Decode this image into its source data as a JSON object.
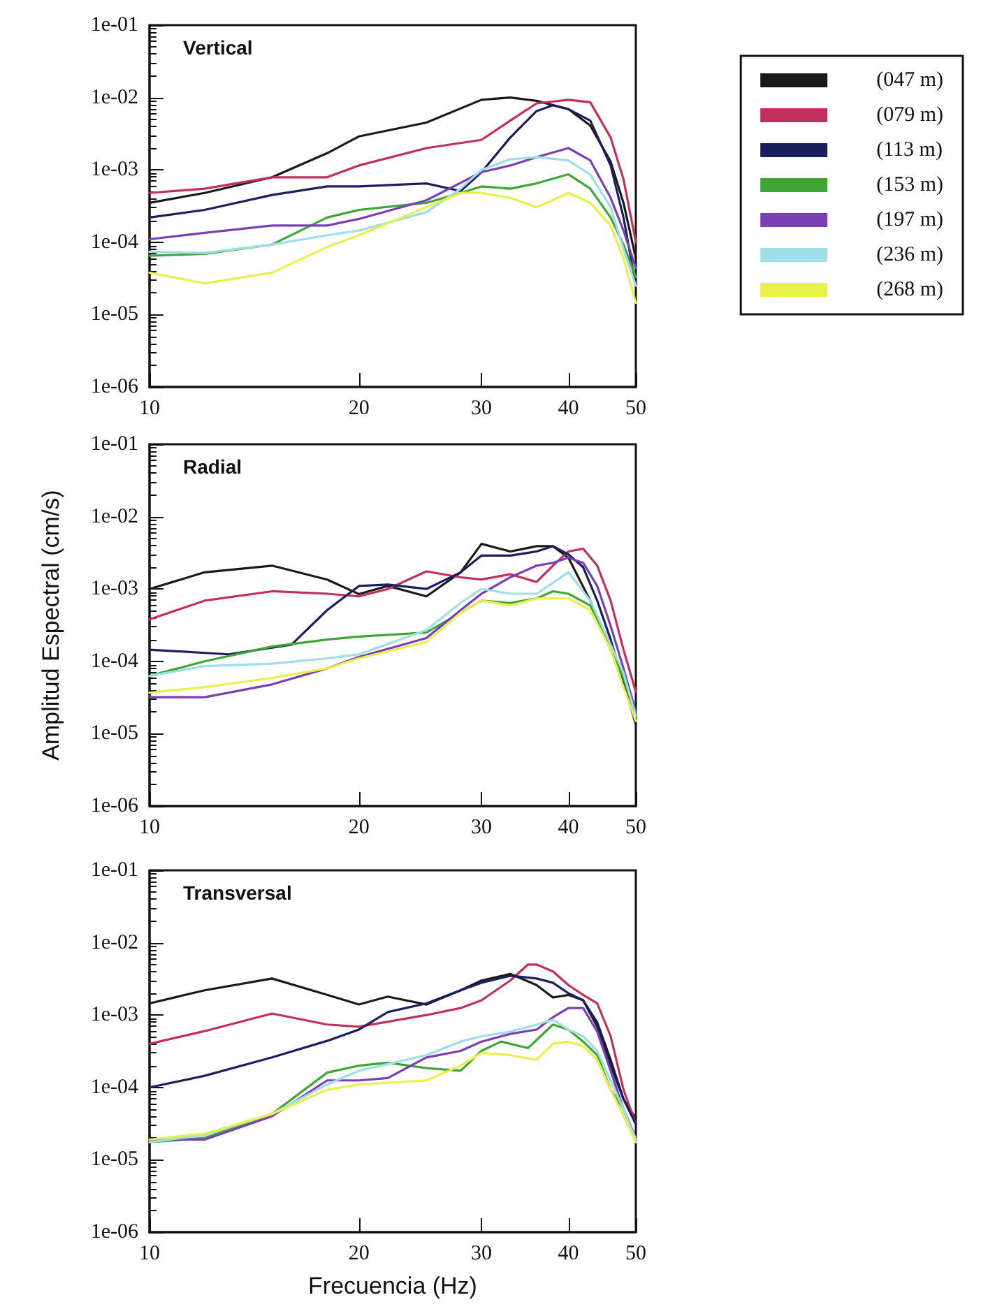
{
  "chart_data": [
    {
      "type": "line",
      "title": "Vertical",
      "log": "xy",
      "grid": false,
      "legend": "top right",
      "marker": "none",
      "line_style": "solid",
      "xlim": [
        10,
        50
      ],
      "xticks": [
        10,
        20,
        30,
        40,
        50
      ],
      "ylim": [
        1e-06,
        0.1
      ],
      "yticks": [
        {
          "value": 0.1,
          "label": "1e-01"
        },
        {
          "value": 0.01,
          "label": "1e-02"
        },
        {
          "value": 0.001,
          "label": "1e-03"
        },
        {
          "value": 0.0001,
          "label": "1e-04"
        },
        {
          "value": 1e-05,
          "label": "1e-05"
        },
        {
          "value": 1e-06,
          "label": "1e-06"
        }
      ],
      "series": [
        {
          "name": "(047 m)",
          "color": "#1a1a1a",
          "x": [
            10,
            12,
            15,
            18,
            20,
            25,
            30,
            33,
            36,
            40,
            43,
            46,
            48,
            50
          ],
          "values": [
            0.00035,
            0.00048,
            0.00079,
            0.0017,
            0.0029,
            0.0045,
            0.0093,
            0.01,
            0.009,
            0.0069,
            0.0041,
            0.0013,
            0.00035,
            6e-05
          ]
        },
        {
          "name": "(079 m)",
          "color": "#c0305a",
          "x": [
            10,
            12,
            15,
            18,
            20,
            25,
            30,
            33,
            36,
            40,
            43,
            46,
            48,
            50
          ],
          "values": [
            0.00048,
            0.00055,
            0.00079,
            0.00079,
            0.00115,
            0.002,
            0.0026,
            0.0048,
            0.0083,
            0.0093,
            0.0086,
            0.0028,
            0.00074,
            0.0001
          ]
        },
        {
          "name": "(113 m)",
          "color": "#1c1f5e",
          "x": [
            10,
            12,
            15,
            18,
            20,
            25,
            28,
            30,
            33,
            36,
            38,
            40,
            43,
            46,
            48,
            50
          ],
          "values": [
            0.00022,
            0.00028,
            0.00045,
            0.00059,
            0.00059,
            0.00065,
            0.00051,
            0.00093,
            0.0028,
            0.0065,
            0.0078,
            0.0069,
            0.0048,
            0.00115,
            0.00022,
            2.5e-05
          ]
        },
        {
          "name": "(153 m)",
          "color": "#3fa535",
          "x": [
            10,
            12,
            15,
            18,
            20,
            25,
            28,
            30,
            33,
            36,
            40,
            43,
            46,
            48,
            50
          ],
          "values": [
            6.5e-05,
            6.9e-05,
            9.3e-05,
            0.00022,
            0.00028,
            0.00035,
            0.00048,
            0.00059,
            0.00055,
            0.00065,
            0.00087,
            0.00055,
            0.00022,
            9.3e-05,
            3.3e-05
          ]
        },
        {
          "name": "(197 m)",
          "color": "#7b3fb5",
          "x": [
            10,
            12,
            15,
            18,
            20,
            25,
            30,
            33,
            36,
            40,
            43,
            46,
            48,
            50
          ],
          "values": [
            0.00011,
            0.000135,
            0.00017,
            0.00017,
            0.00021,
            0.00038,
            0.00093,
            0.00115,
            0.0015,
            0.002,
            0.00135,
            0.00041,
            0.000145,
            4.4e-05
          ]
        },
        {
          "name": "(236 m)",
          "color": "#9fdde8",
          "x": [
            10,
            12,
            15,
            18,
            20,
            25,
            28,
            30,
            33,
            36,
            40,
            43,
            46,
            48,
            50
          ],
          "values": [
            7.4e-05,
            7.1e-05,
            9.3e-05,
            0.000125,
            0.000145,
            0.00026,
            0.00055,
            0.001,
            0.0014,
            0.0015,
            0.00135,
            0.00086,
            0.000305,
            8e-05,
            2.5e-05
          ]
        },
        {
          "name": "(268 m)",
          "color": "#e8f04a",
          "x": [
            10,
            12,
            15,
            18,
            20,
            25,
            28,
            30,
            33,
            36,
            40,
            43,
            46,
            48,
            50
          ],
          "values": [
            3.8e-05,
            2.7e-05,
            3.8e-05,
            8.6e-05,
            0.000125,
            0.000305,
            0.00048,
            0.00048,
            0.00041,
            0.000305,
            0.00048,
            0.00035,
            0.00017,
            6e-05,
            1.45e-05
          ]
        }
      ]
    },
    {
      "type": "line",
      "title": "Radial",
      "ylabel": "Amplitud Espectral (cm/s)",
      "log": "xy",
      "grid": false,
      "legend": false,
      "marker": "none",
      "line_style": "solid",
      "xlim": [
        10,
        50
      ],
      "xticks": [
        10,
        20,
        30,
        40,
        50
      ],
      "ylim": [
        1e-06,
        0.1
      ],
      "yticks": [
        {
          "value": 0.1,
          "label": "1e-01"
        },
        {
          "value": 0.01,
          "label": "1e-02"
        },
        {
          "value": 0.001,
          "label": "1e-03"
        },
        {
          "value": 0.0001,
          "label": "1e-04"
        },
        {
          "value": 1e-05,
          "label": "1e-05"
        },
        {
          "value": 1e-06,
          "label": "1e-06"
        }
      ],
      "series": [
        {
          "color": "#1a1a1a",
          "x": [
            10,
            12,
            15,
            18,
            20,
            22,
            25,
            28,
            30,
            33,
            36,
            38,
            40,
            43,
            46,
            48,
            50
          ],
          "values": [
            0.001,
            0.0017,
            0.0021,
            0.00135,
            0.00085,
            0.0011,
            0.00079,
            0.0017,
            0.0042,
            0.0033,
            0.0039,
            0.0039,
            0.0027,
            0.00069,
            0.000145,
            5.9e-05,
            1.35e-05
          ]
        },
        {
          "color": "#c0305a",
          "x": [
            10,
            12,
            15,
            18,
            20,
            22,
            25,
            28,
            30,
            33,
            36,
            38,
            40,
            42,
            44,
            46,
            48,
            50
          ],
          "values": [
            0.00038,
            0.00069,
            0.00093,
            0.00086,
            0.00079,
            0.001,
            0.00175,
            0.00145,
            0.00135,
            0.0016,
            0.00125,
            0.0021,
            0.0033,
            0.0036,
            0.0021,
            0.00069,
            0.000145,
            3.8e-05
          ]
        },
        {
          "color": "#1c1f5e",
          "x": [
            10,
            13,
            16,
            18,
            20,
            22,
            25,
            28,
            30,
            33,
            36,
            38,
            40,
            42,
            44,
            46,
            48,
            50
          ],
          "values": [
            0.000145,
            0.000125,
            0.00017,
            0.00051,
            0.0011,
            0.00115,
            0.001,
            0.0017,
            0.0029,
            0.0029,
            0.0033,
            0.0039,
            0.003,
            0.002,
            0.00069,
            0.0002,
            5.1e-05,
            1.35e-05
          ]
        },
        {
          "color": "#3fa535",
          "x": [
            10,
            12,
            15,
            18,
            20,
            25,
            28,
            30,
            33,
            36,
            38,
            40,
            43,
            46,
            48,
            50
          ],
          "values": [
            6.3e-05,
            0.0001,
            0.00016,
            0.0002,
            0.00022,
            0.00025,
            0.00047,
            0.00069,
            0.00064,
            0.00074,
            0.00093,
            0.00086,
            0.00059,
            0.000145,
            5.9e-05,
            1.75e-05
          ]
        },
        {
          "color": "#7b3fb5",
          "x": [
            10,
            12,
            15,
            18,
            20,
            25,
            28,
            30,
            33,
            36,
            38,
            40,
            42,
            44,
            46,
            48,
            50
          ],
          "values": [
            3.2e-05,
            3.2e-05,
            4.8e-05,
            8e-05,
            0.000115,
            0.00021,
            0.00051,
            0.00086,
            0.00145,
            0.0021,
            0.0023,
            0.0027,
            0.0023,
            0.0011,
            0.00031,
            8e-05,
            2e-05
          ]
        },
        {
          "color": "#9fdde8",
          "x": [
            10,
            12,
            15,
            18,
            20,
            25,
            28,
            30,
            33,
            36,
            40,
            43,
            46,
            48,
            50
          ],
          "values": [
            6.3e-05,
            8.6e-05,
            9.3e-05,
            0.00011,
            0.000125,
            0.00027,
            0.00064,
            0.001,
            0.00086,
            0.00086,
            0.0017,
            0.00069,
            0.00017,
            6.9e-05,
            1.75e-05
          ]
        },
        {
          "color": "#e8f04a",
          "x": [
            10,
            12,
            15,
            18,
            20,
            25,
            28,
            30,
            33,
            36,
            40,
            43,
            46,
            48,
            50
          ],
          "values": [
            3.7e-05,
            4.4e-05,
            5.9e-05,
            8e-05,
            0.00011,
            0.000185,
            0.00047,
            0.00069,
            0.00059,
            0.00074,
            0.00074,
            0.00051,
            0.000145,
            4.4e-05,
            1.5e-05
          ]
        }
      ]
    },
    {
      "type": "line",
      "title": "Transversal",
      "xlabel": "Frecuencia (Hz)",
      "log": "xy",
      "grid": false,
      "legend": false,
      "marker": "none",
      "line_style": "solid",
      "xlim": [
        10,
        50
      ],
      "xticks": [
        10,
        20,
        30,
        40,
        50
      ],
      "ylim": [
        1e-06,
        0.1
      ],
      "yticks": [
        {
          "value": 0.1,
          "label": "1e-01"
        },
        {
          "value": 0.01,
          "label": "1e-02"
        },
        {
          "value": 0.001,
          "label": "1e-03"
        },
        {
          "value": 0.0001,
          "label": "1e-04"
        },
        {
          "value": 1e-05,
          "label": "1e-05"
        },
        {
          "value": 1e-06,
          "label": "1e-06"
        }
      ],
      "series": [
        {
          "color": "#1a1a1a",
          "x": [
            10,
            12,
            15,
            18,
            20,
            22,
            25,
            28,
            30,
            33,
            36,
            38,
            40,
            42,
            44,
            46,
            48,
            50
          ],
          "values": [
            0.00145,
            0.0022,
            0.0032,
            0.0019,
            0.0014,
            0.0018,
            0.0014,
            0.0022,
            0.003,
            0.0037,
            0.0026,
            0.00175,
            0.0019,
            0.0016,
            0.00079,
            0.00024,
            6.9e-05,
            3.7e-05
          ]
        },
        {
          "color": "#c0305a",
          "x": [
            10,
            12,
            15,
            18,
            20,
            25,
            28,
            30,
            33,
            35,
            36,
            38,
            40,
            42,
            44,
            46,
            48,
            50
          ],
          "values": [
            0.0004,
            0.0006,
            0.00105,
            0.00074,
            0.00069,
            0.001,
            0.00125,
            0.0016,
            0.003,
            0.005,
            0.005,
            0.004,
            0.0026,
            0.0019,
            0.00145,
            0.00051,
            9.3e-05,
            3.1e-05
          ]
        },
        {
          "color": "#1c1f5e",
          "x": [
            10,
            12,
            15,
            18,
            20,
            22,
            25,
            28,
            30,
            33,
            36,
            38,
            40,
            42,
            44,
            46,
            48,
            50
          ],
          "values": [
            0.0001,
            0.000145,
            0.00026,
            0.00044,
            0.00063,
            0.0011,
            0.00145,
            0.0022,
            0.0028,
            0.0035,
            0.0032,
            0.0028,
            0.002,
            0.0016,
            0.00069,
            0.0002,
            6.9e-05,
            3.1e-05
          ]
        },
        {
          "color": "#3fa535",
          "x": [
            10,
            12,
            15,
            18,
            20,
            22,
            25,
            28,
            30,
            32,
            35,
            38,
            40,
            42,
            44,
            46,
            48,
            50
          ],
          "values": [
            1.75e-05,
            2e-05,
            4.3e-05,
            0.00016,
            0.0002,
            0.00022,
            0.000185,
            0.00017,
            0.00032,
            0.00043,
            0.00035,
            0.00074,
            0.00063,
            0.00043,
            0.00028,
            9.3e-05,
            5e-05,
            1.9e-05
          ]
        },
        {
          "color": "#7b3fb5",
          "x": [
            10,
            12,
            15,
            18,
            20,
            22,
            25,
            28,
            30,
            33,
            36,
            38,
            40,
            42,
            44,
            46,
            48,
            50
          ],
          "values": [
            1.9e-05,
            1.9e-05,
            4e-05,
            0.000125,
            0.000125,
            0.000135,
            0.00026,
            0.00032,
            0.00043,
            0.00055,
            0.00063,
            0.00093,
            0.00125,
            0.00125,
            0.00059,
            0.00017,
            5e-05,
            2e-05
          ]
        },
        {
          "color": "#9fdde8",
          "x": [
            10,
            12,
            15,
            18,
            20,
            25,
            28,
            30,
            33,
            36,
            38,
            40,
            42,
            44,
            46,
            48,
            50
          ],
          "values": [
            1.75e-05,
            2.2e-05,
            4.3e-05,
            0.00011,
            0.00017,
            0.00028,
            0.00043,
            0.00051,
            0.00059,
            0.00074,
            0.00086,
            0.00063,
            0.00051,
            0.00032,
            0.000125,
            5e-05,
            1.9e-05
          ]
        },
        {
          "color": "#e8f04a",
          "x": [
            10,
            12,
            15,
            18,
            20,
            25,
            28,
            30,
            33,
            36,
            38,
            40,
            42,
            44,
            46,
            48,
            50
          ],
          "values": [
            1.9e-05,
            2.3e-05,
            4.3e-05,
            9.3e-05,
            0.00011,
            0.000125,
            0.0002,
            0.0003,
            0.00028,
            0.00024,
            0.0004,
            0.00043,
            0.00037,
            0.00024,
            9.3e-05,
            4e-05,
            1.75e-05
          ]
        }
      ]
    }
  ]
}
